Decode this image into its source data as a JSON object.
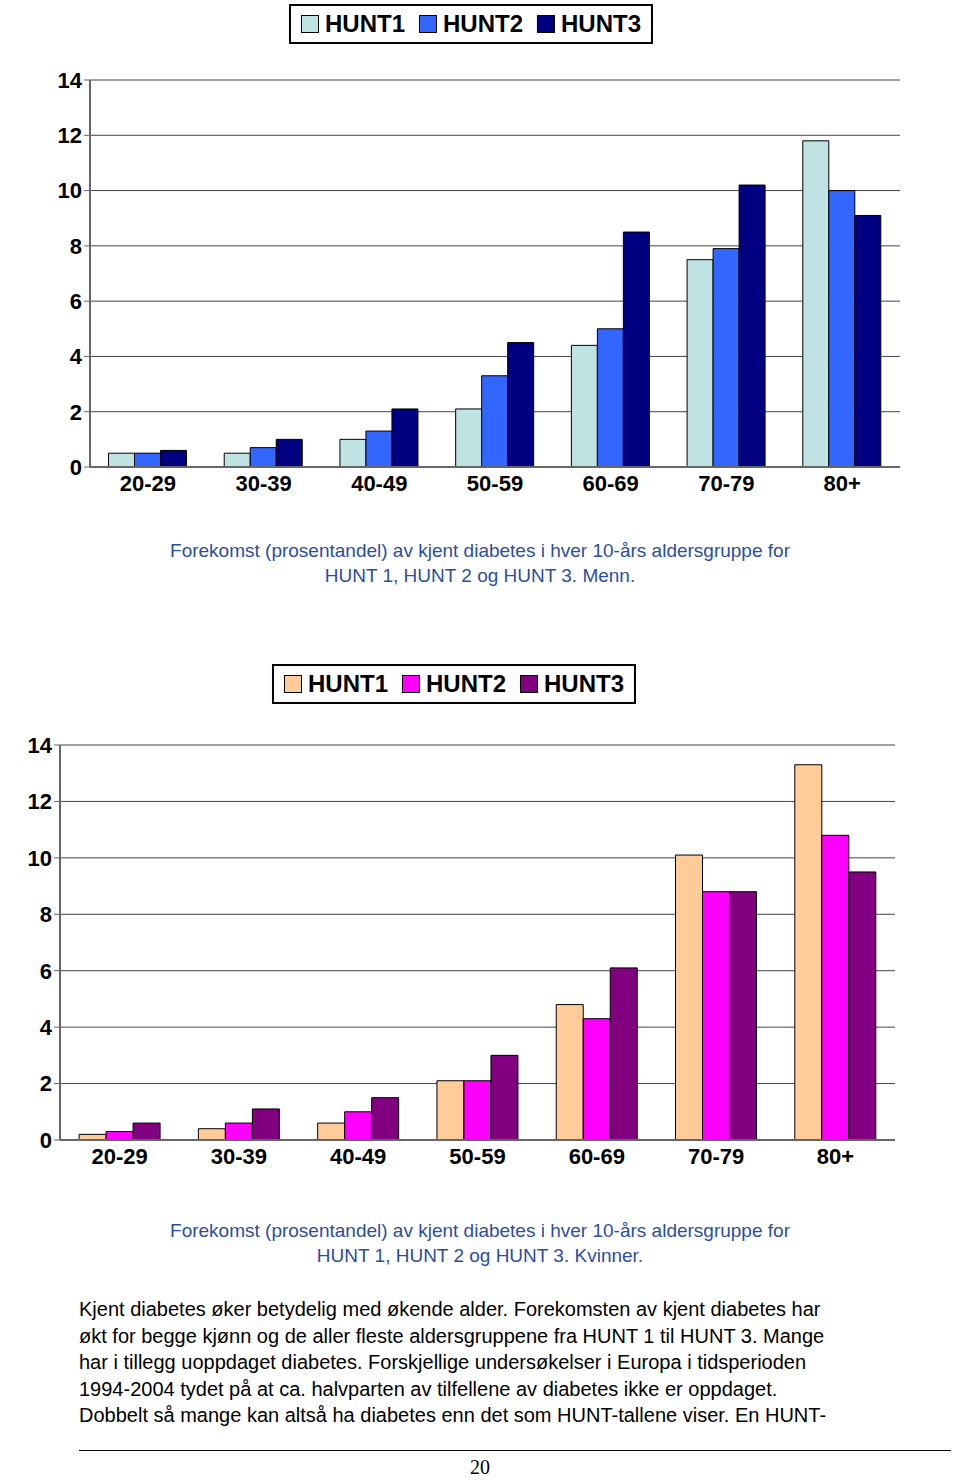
{
  "chart_data": [
    {
      "type": "bar",
      "title": "Forekomst (prosentandel) av kjent diabetes i hver 10-års aldersgruppe for HUNT 1, HUNT 2 og HUNT 3. Menn.",
      "categories": [
        "20-29",
        "30-39",
        "40-49",
        "50-59",
        "60-69",
        "70-79",
        "80+"
      ],
      "series": [
        {
          "name": "HUNT1",
          "color": "#bfe3e3",
          "values": [
            0.5,
            0.5,
            1.0,
            2.1,
            4.4,
            7.5,
            11.8
          ]
        },
        {
          "name": "HUNT2",
          "color": "#3366ff",
          "values": [
            0.5,
            0.7,
            1.3,
            3.3,
            5.0,
            7.9,
            10.0
          ]
        },
        {
          "name": "HUNT3",
          "color": "#000080",
          "values": [
            0.6,
            1.0,
            2.1,
            4.5,
            8.5,
            10.2,
            9.1
          ]
        }
      ],
      "ylim": [
        0,
        14
      ],
      "yticks": [
        0,
        2,
        4,
        6,
        8,
        10,
        12,
        14
      ],
      "grid": true,
      "legend": "top"
    },
    {
      "type": "bar",
      "title": "Forekomst (prosentandel) av kjent diabetes i hver 10-års aldersgruppe for HUNT 1, HUNT 2 og HUNT 3. Kvinner.",
      "categories": [
        "20-29",
        "30-39",
        "40-49",
        "50-59",
        "60-69",
        "70-79",
        "80+"
      ],
      "series": [
        {
          "name": "HUNT1",
          "color": "#ffcc99",
          "values": [
            0.2,
            0.4,
            0.6,
            2.1,
            4.8,
            10.1,
            13.3
          ]
        },
        {
          "name": "HUNT2",
          "color": "#ff00ff",
          "values": [
            0.3,
            0.6,
            1.0,
            2.1,
            4.3,
            8.8,
            10.8
          ]
        },
        {
          "name": "HUNT3",
          "color": "#800080",
          "values": [
            0.6,
            1.1,
            1.5,
            3.0,
            6.1,
            8.8,
            9.5
          ]
        }
      ],
      "ylim": [
        0,
        14
      ],
      "yticks": [
        0,
        2,
        4,
        6,
        8,
        10,
        12,
        14
      ],
      "grid": true,
      "legend": "top"
    }
  ],
  "body": {
    "lines": [
      "Kjent diabetes øker betydelig med økende alder. Forekomsten av kjent diabetes har",
      "økt for begge kjønn og de aller fleste aldersgruppene fra HUNT 1 til HUNT 3. Mange",
      "har i tillegg uoppdaget diabetes. Forskjellige undersøkelser i Europa i tidsperioden",
      "1994-2004 tydet på at ca. halvparten av tilfellene av diabetes ikke er oppdaget.",
      "Dobbelt så mange kan altså ha diabetes enn det som HUNT-tallene viser. En HUNT-"
    ]
  },
  "page_number": 20
}
